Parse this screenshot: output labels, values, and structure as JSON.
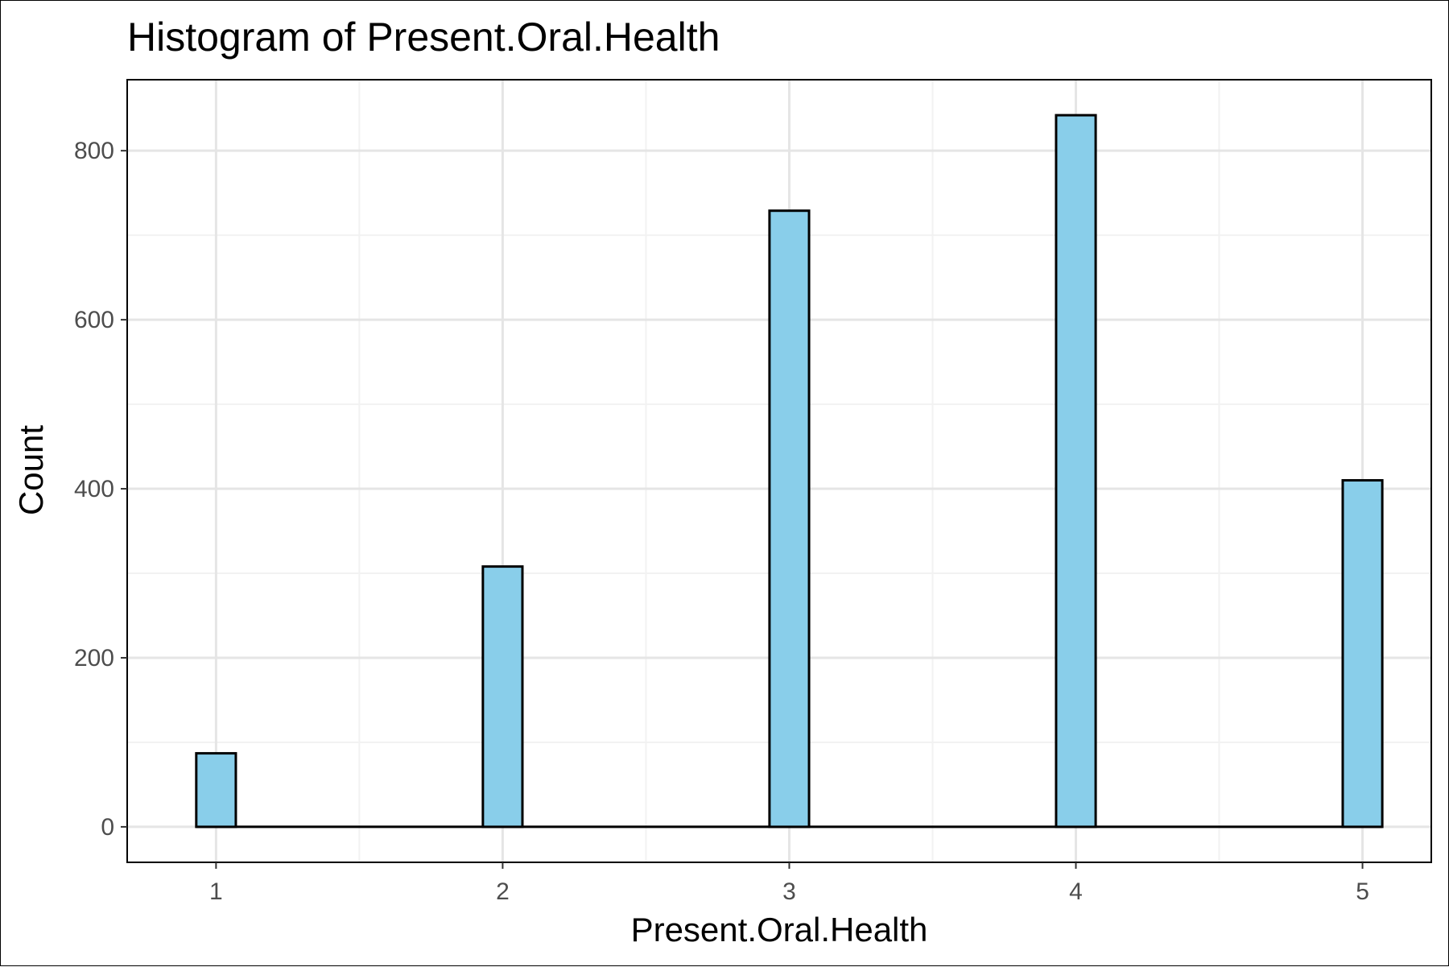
{
  "chart_data": {
    "type": "bar",
    "title": "Histogram of Present.Oral.Health",
    "xlabel": "Present.Oral.Health",
    "ylabel": "Count",
    "categories": [
      "1",
      "2",
      "3",
      "4",
      "5"
    ],
    "x": [
      1,
      2,
      3,
      4,
      5
    ],
    "values": [
      87,
      308,
      729,
      842,
      410
    ],
    "xlim": [
      0.69,
      5.24
    ],
    "ylim": [
      -42,
      884
    ],
    "x_ticks": [
      1,
      2,
      3,
      4,
      5
    ],
    "x_tick_labels": [
      "1",
      "2",
      "3",
      "4",
      "5"
    ],
    "y_ticks": [
      0,
      200,
      400,
      600,
      800
    ],
    "y_tick_labels": [
      "0",
      "200",
      "400",
      "600",
      "800"
    ],
    "bin_width": 0.138,
    "grid": true,
    "legend": "none",
    "colors": {
      "bar_fill": "#89CEEA",
      "bar_stroke": "#000000",
      "grid_major": "#E5E5E5",
      "grid_minor": "#F2F2F2",
      "panel_border": "#000000"
    }
  }
}
